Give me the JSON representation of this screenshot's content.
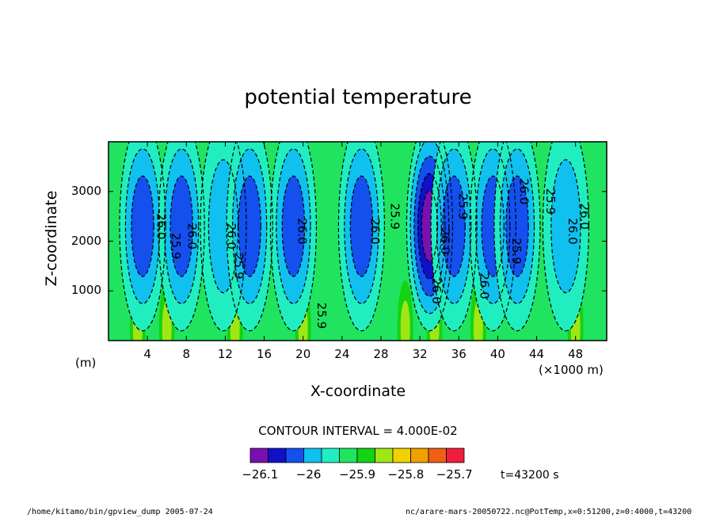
{
  "chart_data": {
    "type": "heatmap",
    "title": "potential temperature",
    "xlabel": "X-coordinate",
    "ylabel": "Z-coordinate",
    "x_unit": "(×1000 m)",
    "y_unit": "(m)",
    "xlim": [
      0,
      51.2
    ],
    "ylim": [
      0,
      4000
    ],
    "x_ticks": [
      4,
      8,
      12,
      16,
      20,
      24,
      28,
      32,
      36,
      40,
      44,
      48
    ],
    "y_ticks": [
      1000,
      2000,
      3000
    ],
    "contour_labels": [
      "26.0",
      "25.9",
      "26.0",
      "26.0",
      "26.0",
      "25.9",
      "26.0",
      "25.9",
      "26.0",
      "26.0",
      "25.9",
      "26.0",
      "25.9",
      "26.0",
      "25.9",
      "26.0",
      "26.0",
      "25.9"
    ],
    "contour_interval": "CONTOUR INTERVAL = 4.000E-02",
    "colorbar": {
      "levels": [
        -26.12,
        -26.08,
        -26.04,
        -26.0,
        -25.96,
        -25.92,
        -25.88,
        -25.84,
        -25.8,
        -25.76,
        -25.72,
        -25.68
      ],
      "colors": [
        "#7a10b0",
        "#1010c8",
        "#1450ee",
        "#10c0ee",
        "#20eec0",
        "#20e460",
        "#14d214",
        "#a0e614",
        "#f0d200",
        "#f0a000",
        "#f06014",
        "#f01e3c"
      ],
      "tick_labels": [
        "-26.1",
        "-26",
        "-25.9",
        "-25.8",
        "-25.7"
      ],
      "tick_values": [
        -26.1,
        -26.0,
        -25.9,
        -25.8,
        -25.7
      ]
    },
    "field": {
      "background_level": -25.92,
      "columns": [
        {
          "x": 3.5,
          "min": -26.06
        },
        {
          "x": 7.5,
          "min": -26.05
        },
        {
          "x": 11.8,
          "min": -26.02
        },
        {
          "x": 14.5,
          "min": -26.04
        },
        {
          "x": 19.0,
          "min": -26.05
        },
        {
          "x": 26.0,
          "min": -26.03
        },
        {
          "x": 33.0,
          "min": -26.11
        },
        {
          "x": 35.5,
          "min": -26.05
        },
        {
          "x": 39.5,
          "min": -26.04
        },
        {
          "x": 42.0,
          "min": -26.03
        },
        {
          "x": 47.0,
          "min": -26.0
        }
      ],
      "warm_spots_x": [
        3.0,
        6.0,
        13.0,
        20.0,
        30.5,
        33.5,
        38.0,
        48.0
      ]
    }
  },
  "time_label": "t=43200 s",
  "footer_left": "/home/kitamo/bin/gpview_dump  2005-07-24",
  "footer_right": "nc/arare-mars-20050722.nc@PotTemp,x=0:51200,z=0:4000,t=43200"
}
